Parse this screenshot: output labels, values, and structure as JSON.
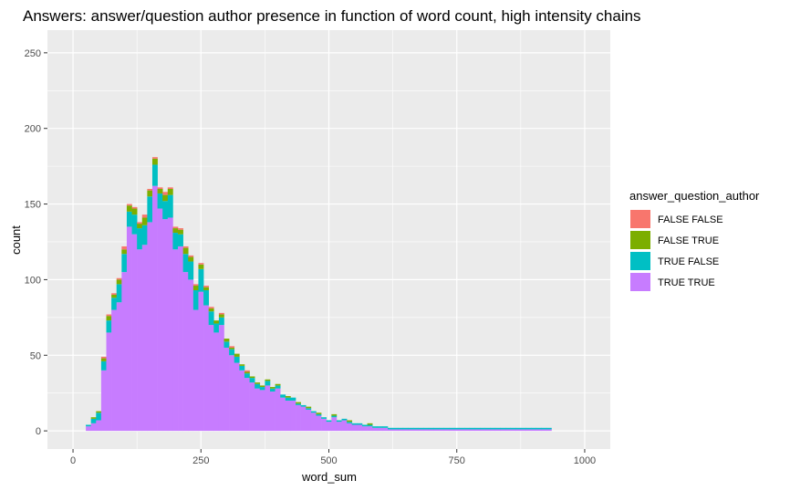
{
  "chart_data": {
    "type": "bar",
    "subtype": "stacked-histogram",
    "title": "Answers: answer/question author presence in function of word count, high intensity chains",
    "xlabel": "word_sum",
    "ylabel": "count",
    "xlim": [
      -50,
      1050
    ],
    "ylim": [
      -12,
      265
    ],
    "x_ticks": [
      0,
      250,
      500,
      750,
      1000
    ],
    "y_ticks": [
      0,
      50,
      100,
      150,
      200,
      250
    ],
    "grid": true,
    "legend_position": "right",
    "legend_title": "answer_question_author",
    "bin_start": 25,
    "bin_width": 10,
    "series": [
      {
        "name": "TRUE TRUE",
        "color": "#C77CFF",
        "values": [
          3,
          5,
          7,
          40,
          65,
          80,
          85,
          105,
          135,
          130,
          120,
          123,
          138,
          162,
          147,
          140,
          141,
          120,
          122,
          105,
          100,
          80,
          92,
          83,
          70,
          65,
          70,
          55,
          50,
          45,
          40,
          35,
          32,
          28,
          27,
          30,
          26,
          28,
          22,
          20,
          20,
          17,
          16,
          14,
          12,
          10,
          8,
          6,
          9,
          6,
          7,
          5,
          4,
          4,
          3,
          3,
          2,
          2,
          2,
          1,
          1,
          1,
          1,
          1,
          1,
          1,
          1,
          1,
          1,
          1,
          1,
          1,
          1,
          1,
          1,
          1,
          1,
          1,
          1,
          1,
          1,
          1,
          1,
          1,
          1,
          1,
          1,
          1,
          1,
          1,
          1
        ]
      },
      {
        "name": "TRUE FALSE",
        "color": "#00BFC4",
        "values": [
          1,
          3,
          5,
          6,
          8,
          8,
          12,
          12,
          10,
          13,
          14,
          13,
          17,
          14,
          10,
          12,
          15,
          11,
          8,
          12,
          12,
          13,
          15,
          10,
          9,
          6,
          5,
          4,
          4,
          4,
          3,
          3,
          3,
          3,
          2,
          3,
          2,
          2,
          2,
          2,
          2,
          1,
          1,
          1,
          1,
          1,
          1,
          1,
          1,
          1,
          1,
          1,
          1,
          1,
          1,
          1,
          1,
          1,
          1,
          1,
          1,
          1,
          1,
          1,
          1,
          1,
          1,
          1,
          1,
          1,
          1,
          1,
          1,
          1,
          1,
          1,
          1,
          1,
          1,
          1,
          1,
          1,
          1,
          1,
          1,
          1,
          1,
          1,
          1,
          1,
          1
        ]
      },
      {
        "name": "FALSE TRUE",
        "color": "#7CAE00",
        "values": [
          0,
          1,
          1,
          2,
          3,
          2,
          3,
          3,
          4,
          4,
          3,
          5,
          4,
          4,
          3,
          4,
          4,
          3,
          3,
          4,
          3,
          3,
          3,
          2,
          2,
          2,
          2,
          2,
          1,
          2,
          1,
          1,
          1,
          1,
          1,
          1,
          1,
          1,
          0,
          1,
          0,
          1,
          0,
          1,
          0,
          1,
          0,
          0,
          1,
          0,
          0,
          1,
          0,
          0,
          0,
          1,
          0,
          0,
          0,
          0,
          0,
          0,
          0,
          0,
          0,
          0,
          0,
          0,
          0,
          0,
          0,
          0,
          0,
          0,
          0,
          0,
          0,
          0,
          0,
          0,
          0,
          0,
          0,
          0,
          0,
          0,
          0,
          0,
          0,
          0,
          0
        ]
      },
      {
        "name": "FALSE FALSE",
        "color": "#F8766D",
        "values": [
          0,
          0,
          0,
          1,
          1,
          1,
          1,
          2,
          1,
          1,
          1,
          2,
          1,
          1,
          1,
          2,
          1,
          1,
          1,
          1,
          1,
          1,
          1,
          1,
          1,
          0,
          1,
          0,
          1,
          0,
          0,
          1,
          0,
          0,
          0,
          0,
          0,
          0,
          0,
          0,
          0,
          0,
          0,
          0,
          0,
          0,
          0,
          0,
          0,
          0,
          0,
          0,
          0,
          0,
          0,
          0,
          0,
          0,
          0,
          0,
          0,
          0,
          0,
          0,
          0,
          0,
          0,
          0,
          0,
          0,
          0,
          0,
          0,
          0,
          0,
          0,
          0,
          0,
          0,
          0,
          0,
          0,
          0,
          0,
          0,
          0,
          0,
          0,
          0,
          0,
          0
        ]
      }
    ],
    "legend": [
      {
        "label": "FALSE FALSE",
        "color": "#F8766D"
      },
      {
        "label": "FALSE TRUE",
        "color": "#7CAE00"
      },
      {
        "label": "TRUE FALSE",
        "color": "#00BFC4"
      },
      {
        "label": "TRUE TRUE",
        "color": "#C77CFF"
      }
    ]
  }
}
